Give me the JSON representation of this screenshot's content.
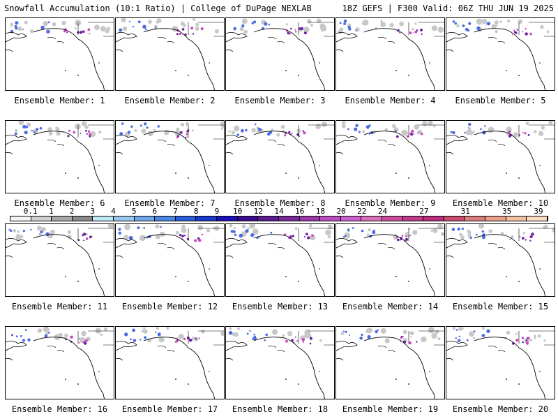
{
  "header": {
    "left": "Snowfall Accumulation (10:1 Ratio) | College of DuPage NEXLAB",
    "right": "18Z GEFS | F300 Valid: 06Z THU JUN 19 2025"
  },
  "panels": [
    {
      "label": "Ensemble Member: 1"
    },
    {
      "label": "Ensemble Member: 2"
    },
    {
      "label": "Ensemble Member: 3"
    },
    {
      "label": "Ensemble Member: 4"
    },
    {
      "label": "Ensemble Member: 5"
    },
    {
      "label": "Ensemble Member: 6"
    },
    {
      "label": "Ensemble Member: 7"
    },
    {
      "label": "Ensemble Member: 8"
    },
    {
      "label": "Ensemble Member: 9"
    },
    {
      "label": "Ensemble Member: 10"
    },
    {
      "label": "Ensemble Member: 11"
    },
    {
      "label": "Ensemble Member: 12"
    },
    {
      "label": "Ensemble Member: 13"
    },
    {
      "label": "Ensemble Member: 14"
    },
    {
      "label": "Ensemble Member: 15"
    },
    {
      "label": "Ensemble Member: 16"
    },
    {
      "label": "Ensemble Member: 17"
    },
    {
      "label": "Ensemble Member: 18"
    },
    {
      "label": "Ensemble Member: 19"
    },
    {
      "label": "Ensemble Member: 20"
    }
  ],
  "colorbar": {
    "ticks": [
      "0.1",
      "1",
      "2",
      "3",
      "4",
      "5",
      "6",
      "7",
      "8",
      "9",
      "10",
      "12",
      "14",
      "16",
      "18",
      "20",
      "22",
      "24",
      "27",
      "31",
      "35",
      "39"
    ],
    "colors": [
      "#f2f2f2",
      "#d0d0d0",
      "#a8a8a8",
      "#8a8a8a",
      "#bfe8f4",
      "#98c8ec",
      "#6fa8e8",
      "#4a86e0",
      "#2a5fd8",
      "#1a3acc",
      "#1c10b8",
      "#3a0a8a",
      "#5a1a90",
      "#7a2a98",
      "#9a3aa8",
      "#b84cc0",
      "#cc60cc",
      "#d870b8",
      "#cc4c9c",
      "#c03a8a",
      "#b82c7a",
      "#c84c6c",
      "#d87c7c",
      "#e8a08c",
      "#f0c0a4",
      "#f8dcc4"
    ]
  },
  "map_colors": {
    "snow_gray": "#c8c8c8",
    "snow_blue": "#4a6ae0",
    "snow_magenta": "#d040c0",
    "snow_purple": "#6a20a0",
    "land_outline": "#000000"
  }
}
